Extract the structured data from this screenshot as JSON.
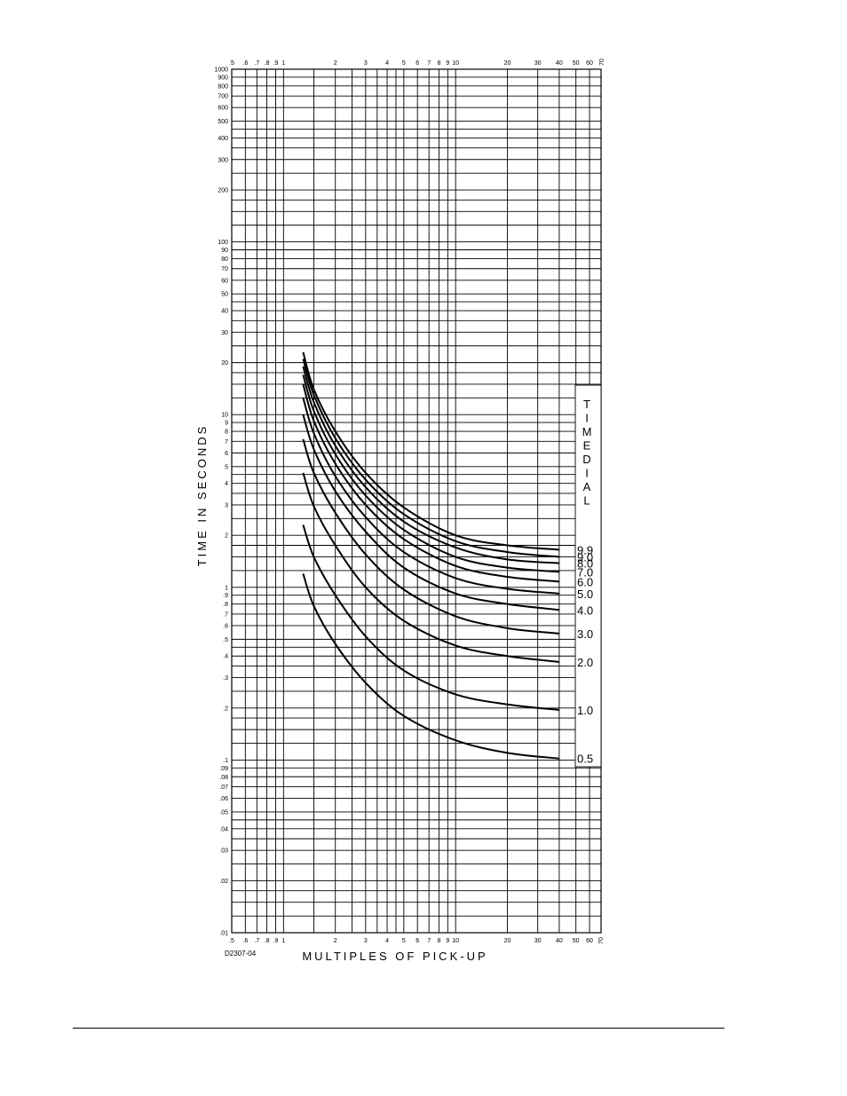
{
  "chart_data": {
    "type": "line",
    "xlabel": "MULTIPLES OF PICK-UP",
    "ylabel": "TIME IN SECONDS",
    "x_scale": "log",
    "y_scale": "log",
    "xlim": [
      0.5,
      70
    ],
    "ylim": [
      0.01,
      1000
    ],
    "grid": true,
    "drawing_ref": "D2307-04",
    "x_tick_labels": [
      {
        "v": 0.5,
        "t": ".5"
      },
      {
        "v": 0.6,
        "t": ".6"
      },
      {
        "v": 0.7,
        "t": ".7"
      },
      {
        "v": 0.8,
        "t": ".8"
      },
      {
        "v": 0.9,
        "t": ".9"
      },
      {
        "v": 1,
        "t": "1"
      },
      {
        "v": 2,
        "t": "2"
      },
      {
        "v": 3,
        "t": "3"
      },
      {
        "v": 4,
        "t": "4"
      },
      {
        "v": 5,
        "t": "5"
      },
      {
        "v": 6,
        "t": "6"
      },
      {
        "v": 7,
        "t": "7"
      },
      {
        "v": 8,
        "t": "8"
      },
      {
        "v": 9,
        "t": "9"
      },
      {
        "v": 10,
        "t": "10"
      },
      {
        "v": 20,
        "t": "20"
      },
      {
        "v": 30,
        "t": "30"
      },
      {
        "v": 40,
        "t": "40"
      },
      {
        "v": 50,
        "t": "50"
      },
      {
        "v": 60,
        "t": "60"
      },
      {
        "v": 70,
        "t": "70"
      }
    ],
    "y_tick_labels": [
      {
        "v": 1000,
        "t": "1000"
      },
      {
        "v": 900,
        "t": "900"
      },
      {
        "v": 800,
        "t": "800"
      },
      {
        "v": 700,
        "t": "700"
      },
      {
        "v": 600,
        "t": "600"
      },
      {
        "v": 500,
        "t": "500"
      },
      {
        "v": 400,
        "t": "400"
      },
      {
        "v": 300,
        "t": "300"
      },
      {
        "v": 200,
        "t": "200"
      },
      {
        "v": 100,
        "t": "100"
      },
      {
        "v": 90,
        "t": "90"
      },
      {
        "v": 80,
        "t": "80"
      },
      {
        "v": 70,
        "t": "70"
      },
      {
        "v": 60,
        "t": "60"
      },
      {
        "v": 50,
        "t": "50"
      },
      {
        "v": 40,
        "t": "40"
      },
      {
        "v": 30,
        "t": "30"
      },
      {
        "v": 20,
        "t": "20"
      },
      {
        "v": 10,
        "t": "10"
      },
      {
        "v": 9,
        "t": "9"
      },
      {
        "v": 8,
        "t": "8"
      },
      {
        "v": 7,
        "t": "7"
      },
      {
        "v": 6,
        "t": "6"
      },
      {
        "v": 5,
        "t": "5"
      },
      {
        "v": 4,
        "t": "4"
      },
      {
        "v": 3,
        "t": "3"
      },
      {
        "v": 2,
        "t": "2"
      },
      {
        "v": 1,
        "t": "1"
      },
      {
        "v": 0.9,
        "t": ".9"
      },
      {
        "v": 0.8,
        "t": ".8"
      },
      {
        "v": 0.7,
        "t": ".7"
      },
      {
        "v": 0.6,
        "t": ".6"
      },
      {
        "v": 0.5,
        "t": ".5"
      },
      {
        "v": 0.4,
        "t": ".4"
      },
      {
        "v": 0.3,
        "t": ".3"
      },
      {
        "v": 0.2,
        "t": ".2"
      },
      {
        "v": 0.1,
        "t": ".1"
      },
      {
        "v": 0.09,
        "t": ".09"
      },
      {
        "v": 0.08,
        "t": ".08"
      },
      {
        "v": 0.07,
        "t": ".07"
      },
      {
        "v": 0.06,
        "t": ".06"
      },
      {
        "v": 0.05,
        "t": ".05"
      },
      {
        "v": 0.04,
        "t": ".04"
      },
      {
        "v": 0.03,
        "t": ".03"
      },
      {
        "v": 0.02,
        "t": ".02"
      },
      {
        "v": 0.01,
        "t": ".01"
      }
    ],
    "legend_title": "TIME DIAL",
    "series": [
      {
        "name": "9.9",
        "points": [
          [
            1.3,
            23
          ],
          [
            1.5,
            14
          ],
          [
            2,
            8
          ],
          [
            3,
            4.6
          ],
          [
            5,
            2.9
          ],
          [
            10,
            2.0
          ],
          [
            20,
            1.75
          ],
          [
            40,
            1.65
          ]
        ]
      },
      {
        "name": "9.0",
        "points": [
          [
            1.3,
            21
          ],
          [
            1.5,
            13
          ],
          [
            2,
            7.3
          ],
          [
            3,
            4.2
          ],
          [
            5,
            2.65
          ],
          [
            10,
            1.85
          ],
          [
            20,
            1.6
          ],
          [
            40,
            1.5
          ]
        ]
      },
      {
        "name": "8.0",
        "points": [
          [
            1.3,
            19
          ],
          [
            1.5,
            11.8
          ],
          [
            2,
            6.6
          ],
          [
            3,
            3.8
          ],
          [
            5,
            2.4
          ],
          [
            10,
            1.7
          ],
          [
            20,
            1.45
          ],
          [
            40,
            1.38
          ]
        ]
      },
      {
        "name": "7.0",
        "points": [
          [
            1.3,
            17
          ],
          [
            1.5,
            10.5
          ],
          [
            2,
            5.9
          ],
          [
            3,
            3.4
          ],
          [
            5,
            2.15
          ],
          [
            10,
            1.5
          ],
          [
            20,
            1.3
          ],
          [
            40,
            1.23
          ]
        ]
      },
      {
        "name": "6.0",
        "points": [
          [
            1.3,
            15
          ],
          [
            1.5,
            9.2
          ],
          [
            2,
            5.2
          ],
          [
            3,
            3.0
          ],
          [
            5,
            1.9
          ],
          [
            10,
            1.33
          ],
          [
            20,
            1.15
          ],
          [
            40,
            1.08
          ]
        ]
      },
      {
        "name": "5.0",
        "points": [
          [
            1.3,
            12.5
          ],
          [
            1.5,
            7.8
          ],
          [
            2,
            4.4
          ],
          [
            3,
            2.55
          ],
          [
            5,
            1.6
          ],
          [
            10,
            1.13
          ],
          [
            20,
            0.98
          ],
          [
            40,
            0.92
          ]
        ]
      },
      {
        "name": "4.0",
        "points": [
          [
            1.3,
            10
          ],
          [
            1.5,
            6.3
          ],
          [
            2,
            3.6
          ],
          [
            3,
            2.1
          ],
          [
            5,
            1.3
          ],
          [
            10,
            0.92
          ],
          [
            20,
            0.8
          ],
          [
            40,
            0.74
          ]
        ]
      },
      {
        "name": "3.0",
        "points": [
          [
            1.3,
            7.2
          ],
          [
            1.5,
            4.6
          ],
          [
            2,
            2.7
          ],
          [
            3,
            1.55
          ],
          [
            5,
            0.97
          ],
          [
            10,
            0.68
          ],
          [
            20,
            0.58
          ],
          [
            40,
            0.54
          ]
        ]
      },
      {
        "name": "2.0",
        "points": [
          [
            1.3,
            4.6
          ],
          [
            1.5,
            2.95
          ],
          [
            2,
            1.75
          ],
          [
            3,
            1.0
          ],
          [
            5,
            0.64
          ],
          [
            10,
            0.46
          ],
          [
            20,
            0.4
          ],
          [
            40,
            0.37
          ]
        ]
      },
      {
        "name": "1.0",
        "points": [
          [
            1.3,
            2.3
          ],
          [
            1.5,
            1.5
          ],
          [
            2,
            0.9
          ],
          [
            3,
            0.52
          ],
          [
            5,
            0.33
          ],
          [
            10,
            0.24
          ],
          [
            20,
            0.21
          ],
          [
            40,
            0.195
          ]
        ]
      },
      {
        "name": "0.5",
        "points": [
          [
            1.3,
            1.2
          ],
          [
            1.5,
            0.78
          ],
          [
            2,
            0.47
          ],
          [
            3,
            0.28
          ],
          [
            5,
            0.18
          ],
          [
            10,
            0.13
          ],
          [
            20,
            0.11
          ],
          [
            40,
            0.102
          ]
        ]
      }
    ]
  }
}
